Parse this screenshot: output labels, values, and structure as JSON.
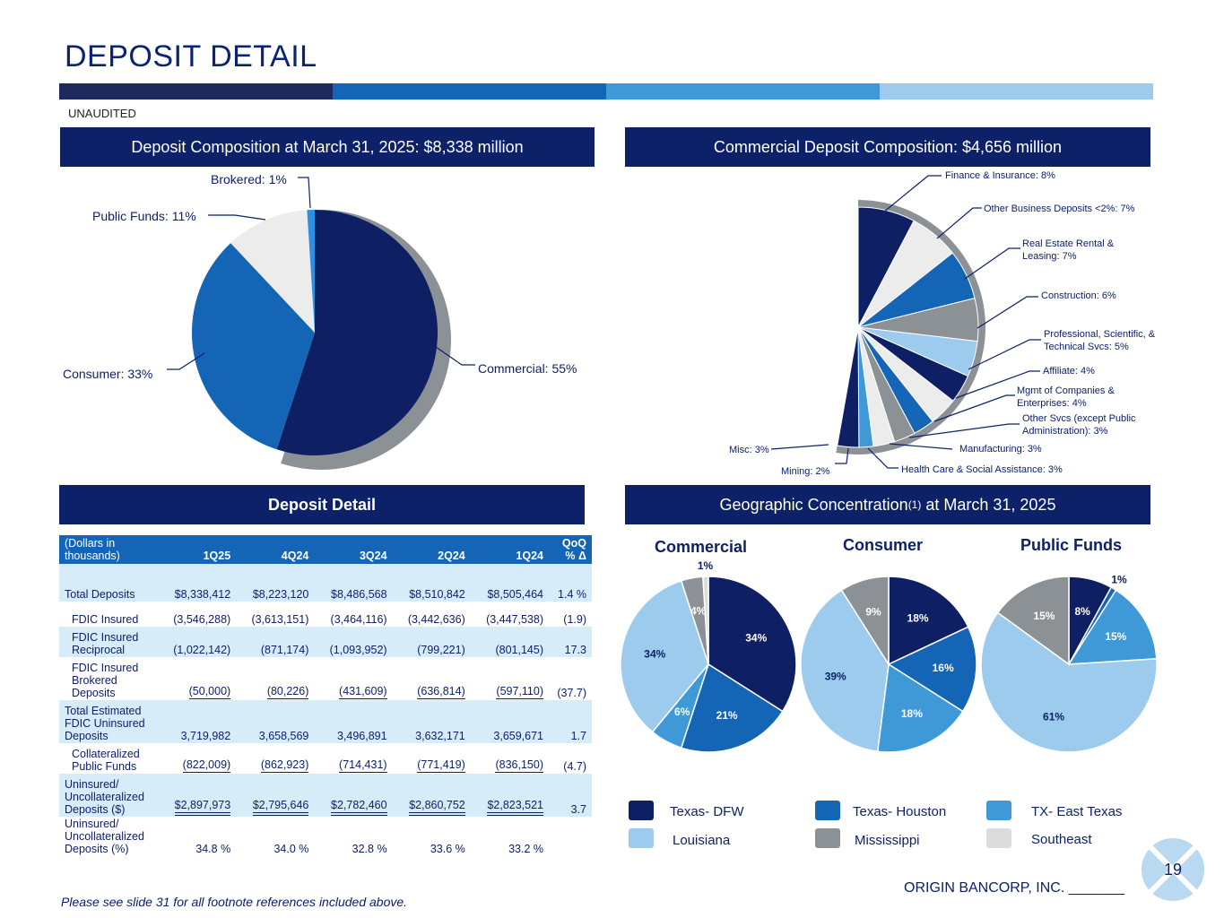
{
  "title": "DEPOSIT DETAIL",
  "subtitle": "UNAUDITED",
  "page_number": "19",
  "footnote": "Please see slide 31 for all footnote references included above.",
  "brand": "ORIGIN BANCORP, INC. _______",
  "colors": {
    "navy": "#0e1f63",
    "blue": "#1565b7",
    "mid_blue": "#3f99d7",
    "light_blue": "#9ccbee",
    "gray": "#8c9196",
    "light_gray": "#dcdcdc",
    "very_light_gray": "#ececec"
  },
  "section_headers": {
    "deposit_composition": "Deposit Composition at March 31, 2025: $8,338 million",
    "commercial_composition": "Commercial Deposit Composition: $4,656 million",
    "deposit_detail": "Deposit Detail",
    "geo_prefix": "Geographic Concentration",
    "geo_sup": "(1)",
    "geo_suffix": " at March 31, 2025"
  },
  "table": {
    "headers": [
      "(Dollars in thousands)",
      "1Q25",
      "4Q24",
      "3Q24",
      "2Q24",
      "1Q24",
      "QoQ % Δ"
    ],
    "rows": [
      {
        "label": "Total Deposits",
        "cells": [
          "$8,338,412",
          "$8,223,120",
          "$8,486,568",
          "$8,510,842",
          "$8,505,464",
          "1.4 %"
        ]
      },
      {
        "label": "FDIC Insured",
        "cells": [
          "(3,546,288)",
          "(3,613,151)",
          "(3,464,116)",
          "(3,442,636)",
          "(3,447,538)",
          "(1.9)"
        ]
      },
      {
        "label": "FDIC Insured Reciprocal",
        "cells": [
          "(1,022,142)",
          "(871,174)",
          "(1,093,952)",
          "(799,221)",
          "(801,145)",
          "17.3"
        ]
      },
      {
        "label": "FDIC Insured Brokered Deposits",
        "cells": [
          "(50,000)",
          "(80,226)",
          "(431,609)",
          "(636,814)",
          "(597,110)",
          "(37.7)"
        ]
      },
      {
        "label": "Total Estimated FDIC Uninsured Deposits",
        "cells": [
          "3,719,982",
          "3,658,569",
          "3,496,891",
          "3,632,171",
          "3,659,671",
          "1.7"
        ]
      },
      {
        "label": "Collateralized Public Funds",
        "cells": [
          "(822,009)",
          "(862,923)",
          "(714,431)",
          "(771,419)",
          "(836,150)",
          "(4.7)"
        ]
      },
      {
        "label": "Uninsured/ Uncollateralized Deposits ($)",
        "cells": [
          "$2,897,973",
          "$2,795,646",
          "$2,782,460",
          "$2,860,752",
          "$2,823,521",
          "3.7"
        ]
      },
      {
        "label": "Uninsured/ Uncollateralized Deposits (%)",
        "cells": [
          "34.8 %",
          "34.0 %",
          "32.8 %",
          "33.6 %",
          "33.2 %",
          ""
        ]
      }
    ]
  },
  "chart_data": [
    {
      "type": "pie",
      "title": "Deposit Composition at March 31, 2025: $8,338 million",
      "slices": [
        {
          "name": "Commercial",
          "value": 55,
          "label": "Commercial: 55%",
          "color": "#0e1f63"
        },
        {
          "name": "Consumer",
          "value": 33,
          "label": "Consumer: 33%",
          "color": "#1565b7"
        },
        {
          "name": "Public Funds",
          "value": 11,
          "label": "Public Funds: 11%",
          "color": "#ececec"
        },
        {
          "name": "Brokered",
          "value": 1,
          "label": "Brokered: 1%",
          "color": "#2e8fe0"
        }
      ]
    },
    {
      "type": "pie",
      "title": "Commercial Deposit Composition: $4,656 million",
      "slices": [
        {
          "name": "Finance & Insurance",
          "value": 8,
          "label": "Finance & Insurance: 8%",
          "color": "#0e1f63"
        },
        {
          "name": "Other Business Deposits <2%",
          "value": 7,
          "label": "Other Business Deposits <2%: 7%",
          "color": "#ececec"
        },
        {
          "name": "Real Estate Rental & Leasing",
          "value": 7,
          "label": "Real Estate Rental & Leasing: 7%",
          "color": "#1565b7"
        },
        {
          "name": "Construction",
          "value": 6,
          "label": "Construction: 6%",
          "color": "#8c9196"
        },
        {
          "name": "Professional, Scientific, & Technical Svcs",
          "value": 5,
          "label": "Professional, Scientific, & Technical Svcs: 5%",
          "color": "#9ccbee"
        },
        {
          "name": "Affiliate",
          "value": 4,
          "label": "Affiliate: 4%",
          "color": "#0e1f63"
        },
        {
          "name": "Mgmt of Companies & Enterprises",
          "value": 4,
          "label": "Mgmt of Companies & Enterprises: 4%",
          "color": "#ececec"
        },
        {
          "name": "Other Svcs (except Public Administration)",
          "value": 3,
          "label": "Other Svcs (except Public Administration): 3%",
          "color": "#1565b7"
        },
        {
          "name": "Manufacturing",
          "value": 3,
          "label": "Manufacturing: 3%",
          "color": "#8c9196"
        },
        {
          "name": "Health Care & Social Assistance",
          "value": 3,
          "label": "Health Care & Social Assistance: 3%",
          "color": "#ececec"
        },
        {
          "name": "Mining",
          "value": 2,
          "label": "Mining: 2%",
          "color": "#3f99d7"
        },
        {
          "name": "Misc",
          "value": 3,
          "label": "Misc: 3%",
          "color": "#0e1f63"
        }
      ]
    },
    {
      "type": "pie",
      "title": "Commercial",
      "slices": [
        {
          "name": "Texas- DFW",
          "value": 34,
          "label": "34%",
          "color": "#0e1f63"
        },
        {
          "name": "Texas- Houston",
          "value": 21,
          "label": "21%",
          "color": "#1565b7"
        },
        {
          "name": "TX- East Texas",
          "value": 6,
          "label": "6%",
          "color": "#3f99d7"
        },
        {
          "name": "Louisiana",
          "value": 34,
          "label": "34%",
          "color": "#9ccbee"
        },
        {
          "name": "Mississippi",
          "value": 4,
          "label": "4%",
          "color": "#8c9196"
        },
        {
          "name": "Southeast",
          "value": 1,
          "label": "1%",
          "color": "#dcdcdc"
        }
      ]
    },
    {
      "type": "pie",
      "title": "Consumer",
      "slices": [
        {
          "name": "Texas- DFW",
          "value": 18,
          "label": "18%",
          "color": "#0e1f63"
        },
        {
          "name": "Texas- Houston",
          "value": 16,
          "label": "16%",
          "color": "#1565b7"
        },
        {
          "name": "TX- East Texas",
          "value": 18,
          "label": "18%",
          "color": "#3f99d7"
        },
        {
          "name": "Louisiana",
          "value": 39,
          "label": "39%",
          "color": "#9ccbee"
        },
        {
          "name": "Mississippi",
          "value": 9,
          "label": "9%",
          "color": "#8c9196"
        }
      ]
    },
    {
      "type": "pie",
      "title": "Public Funds",
      "slices": [
        {
          "name": "Texas- DFW",
          "value": 8,
          "label": "8%",
          "color": "#0e1f63"
        },
        {
          "name": "Texas- Houston",
          "value": 1,
          "label": "1%",
          "color": "#1565b7"
        },
        {
          "name": "TX- East Texas",
          "value": 15,
          "label": "15%",
          "color": "#3f99d7"
        },
        {
          "name": "Louisiana",
          "value": 61,
          "label": "61%",
          "color": "#9ccbee"
        },
        {
          "name": "Mississippi",
          "value": 15,
          "label": "15%",
          "color": "#8c9196"
        }
      ]
    }
  ],
  "legend": [
    {
      "name": "Texas- DFW",
      "color": "#0e1f63"
    },
    {
      "name": "Texas- Houston",
      "color": "#1565b7"
    },
    {
      "name": "TX- East Texas",
      "color": "#3f99d7"
    },
    {
      "name": "Louisiana",
      "color": "#9ccbee"
    },
    {
      "name": "Mississippi",
      "color": "#8c9196"
    },
    {
      "name": "Southeast",
      "color": "#dcdcdc"
    }
  ]
}
